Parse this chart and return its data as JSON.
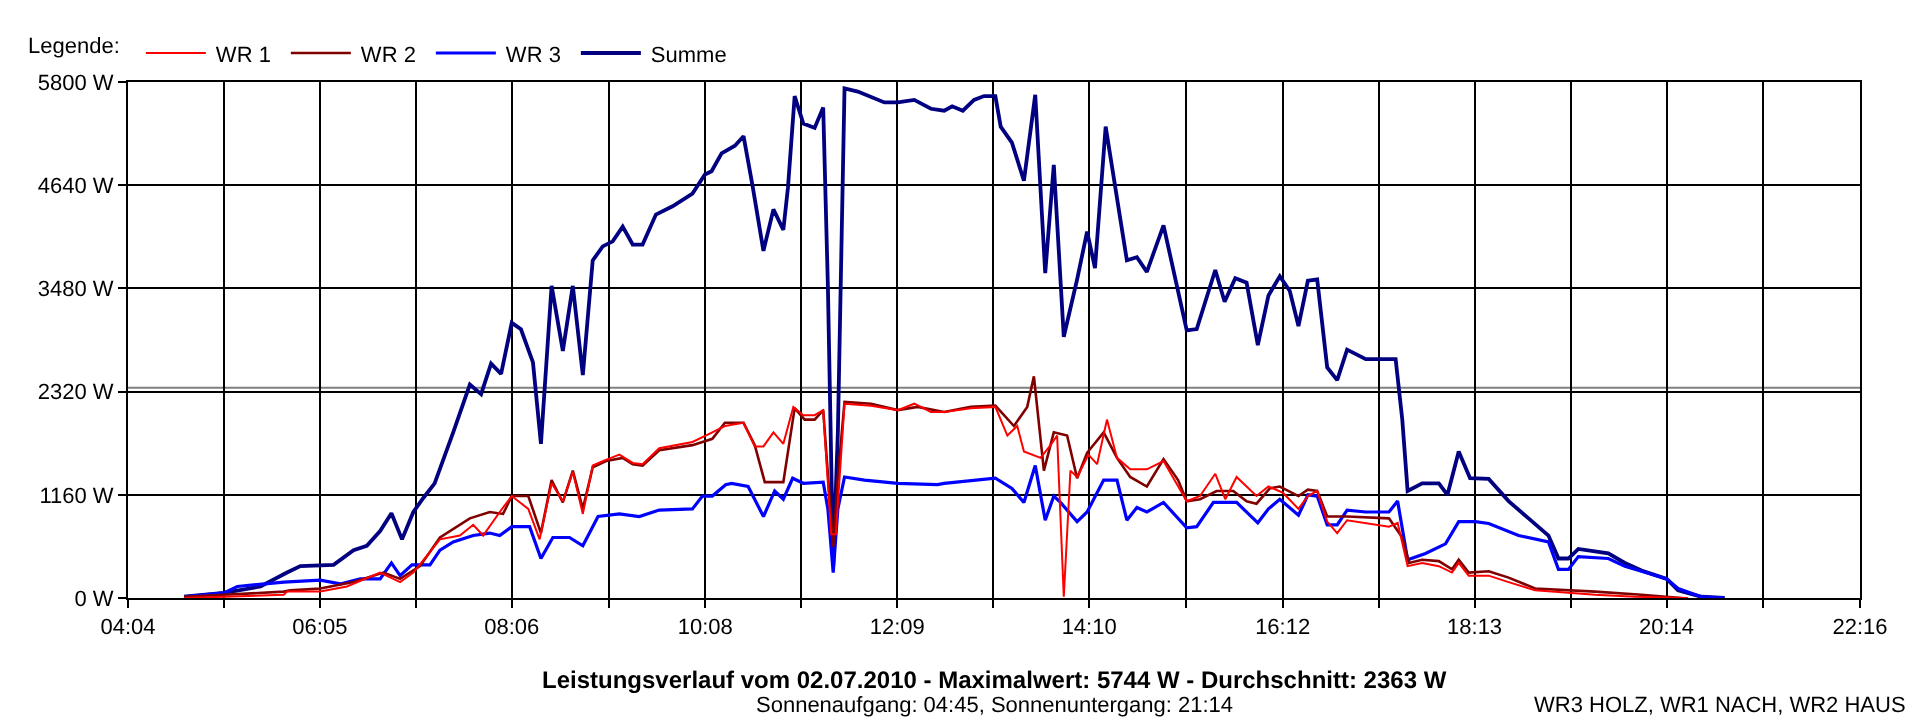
{
  "chart_data": {
    "type": "line",
    "title": "Leistungsverlauf vom 02.07.2010 - Maximalwert: 5744 W - Durchschnitt: 2363 W",
    "subtitle": "Sonnenaufgang: 04:45, Sonnenuntergang: 21:14",
    "legend_title": "Legende:",
    "annotations": [
      "WR3 HOLZ, WR1 NACH, WR2 HAUS"
    ],
    "xlim": [
      4.0667,
      22.2667
    ],
    "xticks": [
      {
        "value": 4.0667,
        "label": "04:04"
      },
      {
        "value": 5.075,
        "label": null
      },
      {
        "value": 6.0833,
        "label": "06:05"
      },
      {
        "value": 7.0917,
        "label": null
      },
      {
        "value": 8.1,
        "label": "08:06"
      },
      {
        "value": 9.1167,
        "label": null
      },
      {
        "value": 10.1333,
        "label": "10:08"
      },
      {
        "value": 11.1417,
        "label": null
      },
      {
        "value": 12.15,
        "label": "12:09"
      },
      {
        "value": 13.1583,
        "label": null
      },
      {
        "value": 14.1667,
        "label": "14:10"
      },
      {
        "value": 15.1833,
        "label": null
      },
      {
        "value": 16.2,
        "label": "16:12"
      },
      {
        "value": 17.2083,
        "label": null
      },
      {
        "value": 18.2167,
        "label": "18:13"
      },
      {
        "value": 19.225,
        "label": null
      },
      {
        "value": 20.2333,
        "label": "20:14"
      },
      {
        "value": 21.25,
        "label": null
      },
      {
        "value": 22.2667,
        "label": "22:16"
      }
    ],
    "ylim": [
      0,
      5800
    ],
    "yticks": [
      {
        "value": 0,
        "label": "0 W"
      },
      {
        "value": 1160,
        "label": "1160 W"
      },
      {
        "value": 2320,
        "label": "2320 W"
      },
      {
        "value": 3480,
        "label": "3480 W"
      },
      {
        "value": 4640,
        "label": "4640 W"
      },
      {
        "value": 5800,
        "label": "5800 W"
      }
    ],
    "ref_lines": [
      {
        "axis": "y",
        "value": 2363,
        "color": "#808080"
      }
    ],
    "grid": true,
    "legend": "top left",
    "marker": "none",
    "line_style": "solid",
    "series": [
      {
        "name": "WR 1",
        "color": "#ff0000",
        "x": [
          4.656,
          5.075,
          5.703,
          5.738,
          6.087,
          6.367,
          6.716,
          6.926,
          7.065,
          7.345,
          7.554,
          7.694,
          7.799,
          7.973,
          8.099,
          8.273,
          8.392,
          8.518,
          8.636,
          8.741,
          8.846,
          8.95,
          9.055,
          9.23,
          9.37,
          9.474,
          9.649,
          9.998,
          10.207,
          10.339,
          10.535,
          10.653,
          10.744,
          10.849,
          10.953,
          11.058,
          11.163,
          11.282,
          11.372,
          11.456,
          11.505,
          11.596,
          11.875,
          12.155,
          12.329,
          12.504,
          12.643,
          12.923,
          13.181,
          13.307,
          13.411,
          13.481,
          13.656,
          13.761,
          13.83,
          13.9,
          13.97,
          14.04,
          14.159,
          14.25,
          14.354,
          14.459,
          14.598,
          14.773,
          14.948,
          15.192,
          15.332,
          15.492,
          15.597,
          15.716,
          15.925,
          16.051,
          16.205,
          16.366,
          16.465,
          16.563,
          16.668,
          16.773,
          16.877,
          17.317,
          17.408,
          17.513,
          17.666,
          17.841,
          17.98,
          18.05,
          18.155,
          18.365,
          18.574,
          18.853,
          19.482,
          19.901,
          20.46
        ],
        "values": [
          0,
          14,
          36,
          72,
          72,
          129,
          286,
          179,
          286,
          659,
          702,
          823,
          702,
          967,
          1146,
          1002,
          659,
          1289,
          1088,
          1418,
          945,
          1489,
          1539,
          1611,
          1518,
          1504,
          1683,
          1754,
          1862,
          1933,
          1969,
          1704,
          1704,
          1862,
          1733,
          2148,
          2055,
          2055,
          2112,
          716,
          716,
          2184,
          2162,
          2112,
          2184,
          2091,
          2091,
          2134,
          2148,
          1826,
          1933,
          1647,
          1575,
          1718,
          1826,
          14,
          1432,
          1360,
          1611,
          1504,
          2005,
          1575,
          1446,
          1446,
          1539,
          1088,
          1146,
          1396,
          1110,
          1360,
          1146,
          1253,
          1181,
          1002,
          1146,
          1203,
          859,
          730,
          874,
          802,
          845,
          358,
          394,
          358,
          286,
          394,
          251,
          251,
          179,
          86,
          36,
          14,
          0
        ]
      },
      {
        "name": "WR 2",
        "color": "#800000",
        "x": [
          4.656,
          5.075,
          5.703,
          5.773,
          6.087,
          6.437,
          6.751,
          6.926,
          7.135,
          7.345,
          7.659,
          7.868,
          8.008,
          8.099,
          8.273,
          8.406,
          8.518,
          8.636,
          8.741,
          8.846,
          8.95,
          9.09,
          9.265,
          9.37,
          9.474,
          9.649,
          9.998,
          10.207,
          10.339,
          10.535,
          10.653,
          10.758,
          10.953,
          11.072,
          11.177,
          11.282,
          11.372,
          11.477,
          11.526,
          11.596,
          11.875,
          12.155,
          12.364,
          12.643,
          12.923,
          13.181,
          13.376,
          13.516,
          13.586,
          13.691,
          13.795,
          13.935,
          14.04,
          14.145,
          14.319,
          14.459,
          14.598,
          14.773,
          14.948,
          15.101,
          15.192,
          15.332,
          15.506,
          15.681,
          15.821,
          15.925,
          16.065,
          16.17,
          16.366,
          16.465,
          16.563,
          16.668,
          16.877,
          17.317,
          17.457,
          17.527,
          17.666,
          17.841,
          17.98,
          18.05,
          18.155,
          18.365,
          18.574,
          18.853,
          19.482,
          19.971,
          20.39
        ],
        "values": [
          14,
          36,
          72,
          86,
          107,
          179,
          286,
          215,
          358,
          680,
          895,
          967,
          945,
          1146,
          1146,
          730,
          1325,
          1074,
          1432,
          1002,
          1468,
          1539,
          1575,
          1504,
          1489,
          1661,
          1718,
          1790,
          1969,
          1969,
          1718,
          1303,
          1303,
          2134,
          2005,
          2005,
          2112,
          573,
          1360,
          2205,
          2184,
          2112,
          2148,
          2091,
          2148,
          2162,
          1933,
          2148,
          2492,
          1432,
          1862,
          1826,
          1346,
          1632,
          1862,
          1575,
          1360,
          1253,
          1561,
          1325,
          1088,
          1110,
          1203,
          1203,
          1088,
          1060,
          1232,
          1253,
          1146,
          1217,
          1203,
          916,
          916,
          895,
          680,
          394,
          430,
          415,
          322,
          430,
          286,
          301,
          229,
          107,
          72,
          36,
          0
        ]
      },
      {
        "name": "WR 3",
        "color": "#0000ff",
        "x": [
          4.656,
          5.075,
          5.215,
          5.703,
          6.087,
          6.297,
          6.507,
          6.716,
          6.835,
          6.926,
          7.051,
          7.24,
          7.345,
          7.484,
          7.694,
          7.868,
          7.973,
          8.099,
          8.287,
          8.406,
          8.531,
          8.706,
          8.846,
          9.006,
          9.23,
          9.439,
          9.649,
          9.998,
          10.103,
          10.207,
          10.347,
          10.409,
          10.583,
          10.744,
          10.862,
          10.953,
          11.051,
          11.163,
          11.372,
          11.421,
          11.477,
          11.526,
          11.596,
          11.805,
          12.155,
          12.573,
          12.643,
          13.181,
          13.355,
          13.481,
          13.6,
          13.705,
          13.795,
          13.865,
          14.04,
          14.145,
          14.319,
          14.459,
          14.563,
          14.668,
          14.773,
          14.948,
          15.192,
          15.297,
          15.472,
          15.716,
          15.939,
          16.051,
          16.17,
          16.366,
          16.414,
          16.465,
          16.563,
          16.668,
          16.773,
          16.877,
          17.073,
          17.317,
          17.408,
          17.513,
          17.701,
          17.911,
          18.05,
          18.225,
          18.365,
          18.679,
          18.993,
          19.098,
          19.203,
          19.307,
          19.622,
          19.796,
          19.971,
          20.236,
          20.355,
          20.599,
          20.844
        ],
        "values": [
          14,
          57,
          129,
          179,
          200,
          158,
          215,
          215,
          394,
          251,
          372,
          372,
          537,
          630,
          702,
          730,
          702,
          802,
          802,
          444,
          680,
          680,
          587,
          916,
          945,
          916,
          988,
          1002,
          1146,
          1146,
          1274,
          1289,
          1253,
          916,
          1203,
          1110,
          1346,
          1289,
          1303,
          1002,
          286,
          1002,
          1360,
          1325,
          1289,
          1274,
          1289,
          1346,
          1232,
          1074,
          1489,
          874,
          1146,
          1074,
          859,
          967,
          1325,
          1325,
          874,
          1017,
          967,
          1074,
          788,
          802,
          1074,
          1074,
          845,
          1002,
          1110,
          931,
          1038,
          1160,
          1146,
          823,
          823,
          988,
          967,
          967,
          1089,
          429,
          501,
          609,
          859,
          859,
          838,
          702,
          630,
          322,
          322,
          465,
          444,
          358,
          301,
          215,
          107,
          14,
          0
        ]
      },
      {
        "name": "Summe",
        "color": "#000080",
        "x": [
          4.656,
          5.075,
          5.459,
          5.738,
          5.878,
          6.227,
          6.437,
          6.576,
          6.716,
          6.835,
          6.946,
          7.065,
          7.17,
          7.289,
          7.484,
          7.659,
          7.777,
          7.882,
          7.987,
          8.099,
          8.196,
          8.322,
          8.406,
          8.518,
          8.636,
          8.741,
          8.846,
          8.95,
          9.055,
          9.16,
          9.265,
          9.37,
          9.474,
          9.614,
          9.789,
          9.998,
          10.129,
          10.199,
          10.304,
          10.444,
          10.535,
          10.632,
          10.744,
          10.849,
          10.953,
          11.002,
          11.072,
          11.163,
          11.282,
          11.372,
          11.421,
          11.477,
          11.526,
          11.596,
          11.736,
          12.015,
          12.155,
          12.329,
          12.504,
          12.643,
          12.727,
          12.839,
          12.957,
          13.062,
          13.181,
          13.237,
          13.355,
          13.481,
          13.6,
          13.705,
          13.795,
          13.9,
          14.04,
          14.145,
          14.228,
          14.34,
          14.563,
          14.668,
          14.773,
          14.948,
          15.192,
          15.297,
          15.492,
          15.59,
          15.702,
          15.821,
          15.939,
          16.051,
          16.17,
          16.275,
          16.366,
          16.465,
          16.563,
          16.668,
          16.773,
          16.877,
          17.073,
          17.387,
          17.457,
          17.513,
          17.666,
          17.841,
          17.932,
          18.05,
          18.169,
          18.365,
          18.574,
          18.784,
          18.993,
          19.098,
          19.203,
          19.307,
          19.622,
          19.796,
          19.971,
          20.236,
          20.355,
          20.599,
          20.844
        ],
        "values": [
          14,
          57,
          129,
          286,
          358,
          372,
          537,
          587,
          752,
          952,
          659,
          967,
          1124,
          1289,
          1862,
          2399,
          2291,
          2635,
          2520,
          3093,
          3021,
          2649,
          1732,
          3508,
          2778,
          3508,
          2506,
          3794,
          3952,
          4009,
          4174,
          3973,
          3973,
          4310,
          4403,
          4546,
          4761,
          4797,
          4998,
          5084,
          5191,
          4618,
          3902,
          4368,
          4138,
          4618,
          5642,
          5334,
          5284,
          5513,
          3508,
          358,
          1862,
          5728,
          5692,
          5570,
          5570,
          5599,
          5499,
          5477,
          5527,
          5477,
          5599,
          5642,
          5642,
          5298,
          5119,
          4690,
          5656,
          3652,
          4869,
          2936,
          3580,
          4117,
          3709,
          5298,
          3795,
          3831,
          3666,
          4189,
          3007,
          3022,
          3687,
          3329,
          3594,
          3544,
          2843,
          3401,
          3616,
          3451,
          3057,
          3566,
          3580,
          2592,
          2449,
          2792,
          2685,
          2685,
          2005,
          1203,
          1289,
          1289,
          1160,
          1647,
          1346,
          1339,
          1089,
          895,
          702,
          444,
          444,
          551,
          501,
          394,
          308,
          215,
          86,
          14,
          0
        ]
      }
    ]
  }
}
